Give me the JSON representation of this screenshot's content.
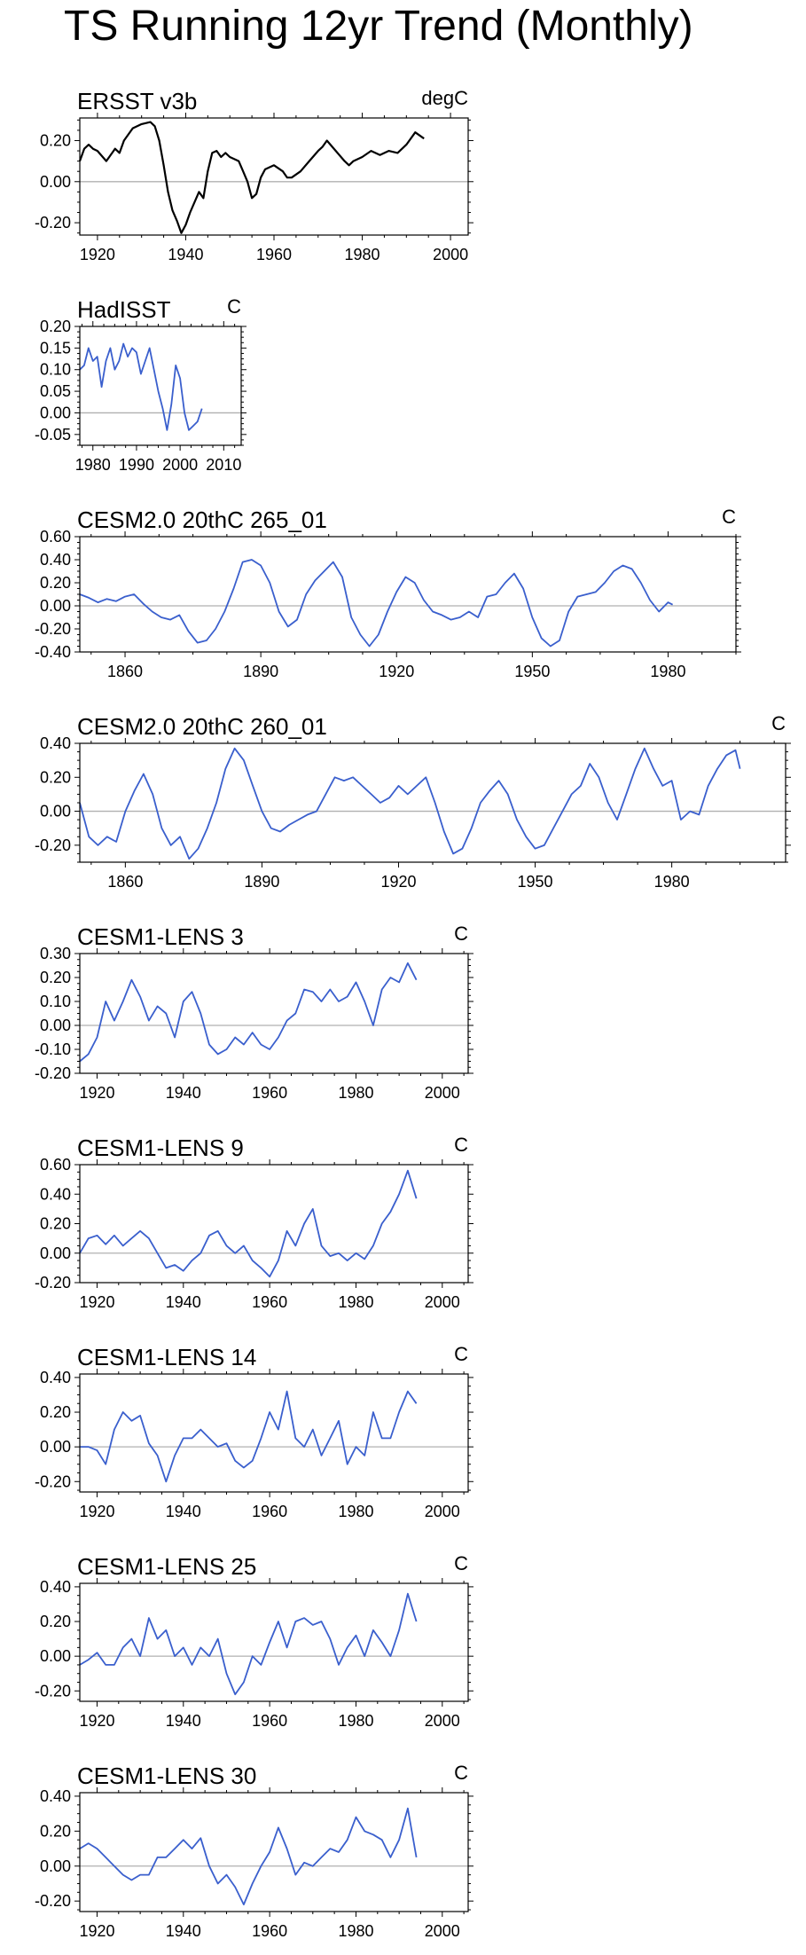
{
  "page_title": "TS Running 12yr Trend (Monthly)",
  "colors": {
    "obs_line": "#000000",
    "model_line": "#3a5fcd",
    "zero_line": "#b0b0b0",
    "axis": "#000000"
  },
  "chart_data": [
    {
      "type": "line",
      "id": "ersst",
      "title": "ERSST v3b",
      "units": "degC",
      "xlim": [
        1916,
        2004
      ],
      "ylim": [
        -0.26,
        0.31
      ],
      "xticks": [
        1920,
        1940,
        1960,
        1980,
        2000
      ],
      "xtick_labels": [
        "1920",
        "1940",
        "1960",
        "1980",
        "2000"
      ],
      "yticks": [
        -0.2,
        0,
        0.2
      ],
      "ytick_labels": [
        "-0.20",
        "0.00",
        "0.20"
      ],
      "x": [
        1916,
        1917,
        1918,
        1919,
        1920,
        1922,
        1924,
        1925,
        1926,
        1928,
        1930,
        1932,
        1933,
        1934,
        1935,
        1936,
        1937,
        1938,
        1939,
        1940,
        1941,
        1942,
        1943,
        1944,
        1945,
        1946,
        1947,
        1948,
        1949,
        1950,
        1952,
        1953,
        1954,
        1955,
        1956,
        1957,
        1958,
        1960,
        1962,
        1963,
        1964,
        1966,
        1968,
        1970,
        1971,
        1972,
        1974,
        1976,
        1977,
        1978,
        1980,
        1982,
        1984,
        1986,
        1988,
        1990,
        1992,
        1994
      ],
      "values": [
        0.1,
        0.16,
        0.18,
        0.16,
        0.15,
        0.1,
        0.16,
        0.14,
        0.2,
        0.26,
        0.28,
        0.29,
        0.27,
        0.2,
        0.08,
        -0.05,
        -0.14,
        -0.19,
        -0.25,
        -0.21,
        -0.15,
        -0.1,
        -0.05,
        -0.08,
        0.05,
        0.14,
        0.15,
        0.12,
        0.14,
        0.12,
        0.1,
        0.05,
        0.0,
        -0.08,
        -0.06,
        0.02,
        0.06,
        0.08,
        0.05,
        0.02,
        0.02,
        0.05,
        0.1,
        0.15,
        0.17,
        0.2,
        0.15,
        0.1,
        0.08,
        0.1,
        0.12,
        0.15,
        0.13,
        0.15,
        0.14,
        0.18,
        0.24,
        0.21
      ]
    },
    {
      "type": "line",
      "id": "hadisst",
      "title": "HadISST",
      "units": "C",
      "xlim": [
        1977,
        2014
      ],
      "ylim": [
        -0.075,
        0.2
      ],
      "xticks": [
        1980,
        1990,
        2000,
        2010
      ],
      "xtick_labels": [
        "1980",
        "1990",
        "2000",
        "2010"
      ],
      "yticks": [
        -0.05,
        0,
        0.05,
        0.1,
        0.15,
        0.2
      ],
      "ytick_labels": [
        "-0.05",
        "0.00",
        "0.05",
        "0.10",
        "0.15",
        "0.20"
      ],
      "x": [
        1977,
        1978,
        1979,
        1980,
        1981,
        1982,
        1983,
        1984,
        1985,
        1986,
        1987,
        1988,
        1989,
        1990,
        1991,
        1992,
        1993,
        1994,
        1995,
        1996,
        1997,
        1998,
        1999,
        2000,
        2001,
        2002,
        2003,
        2004,
        2005
      ],
      "values": [
        0.1,
        0.11,
        0.15,
        0.12,
        0.13,
        0.06,
        0.12,
        0.15,
        0.1,
        0.12,
        0.16,
        0.13,
        0.15,
        0.14,
        0.09,
        0.12,
        0.15,
        0.1,
        0.05,
        0.01,
        -0.04,
        0.02,
        0.11,
        0.08,
        0.0,
        -0.04,
        -0.03,
        -0.02,
        0.01
      ]
    },
    {
      "type": "line",
      "id": "cesm2-265",
      "title": "CESM2.0 20thC 265_01",
      "units": "C",
      "xlim": [
        1850,
        1995
      ],
      "ylim": [
        -0.4,
        0.6
      ],
      "xticks": [
        1860,
        1890,
        1920,
        1950,
        1980
      ],
      "xtick_labels": [
        "1860",
        "1890",
        "1920",
        "1950",
        "1980"
      ],
      "yticks": [
        -0.4,
        -0.2,
        0,
        0.2,
        0.4,
        0.6
      ],
      "ytick_labels": [
        "-0.40",
        "-0.20",
        "0.00",
        "0.20",
        "0.40",
        "0.60"
      ],
      "x": [
        1850,
        1852,
        1854,
        1856,
        1858,
        1860,
        1862,
        1864,
        1866,
        1868,
        1870,
        1872,
        1874,
        1876,
        1878,
        1880,
        1882,
        1884,
        1886,
        1888,
        1890,
        1892,
        1894,
        1896,
        1898,
        1900,
        1902,
        1904,
        1906,
        1908,
        1910,
        1912,
        1914,
        1916,
        1918,
        1920,
        1922,
        1924,
        1926,
        1928,
        1930,
        1932,
        1934,
        1936,
        1938,
        1940,
        1942,
        1944,
        1946,
        1948,
        1950,
        1952,
        1954,
        1956,
        1958,
        1960,
        1962,
        1964,
        1966,
        1968,
        1970,
        1972,
        1974,
        1976,
        1978,
        1980,
        1981
      ],
      "values": [
        0.1,
        0.07,
        0.03,
        0.06,
        0.04,
        0.08,
        0.1,
        0.02,
        -0.05,
        -0.1,
        -0.12,
        -0.08,
        -0.22,
        -0.32,
        -0.3,
        -0.2,
        -0.05,
        0.15,
        0.38,
        0.4,
        0.35,
        0.2,
        -0.05,
        -0.18,
        -0.12,
        0.1,
        0.22,
        0.3,
        0.38,
        0.25,
        -0.1,
        -0.25,
        -0.35,
        -0.25,
        -0.05,
        0.12,
        0.25,
        0.2,
        0.05,
        -0.05,
        -0.08,
        -0.12,
        -0.1,
        -0.05,
        -0.1,
        0.08,
        0.1,
        0.2,
        0.28,
        0.15,
        -0.1,
        -0.28,
        -0.35,
        -0.3,
        -0.05,
        0.08,
        0.1,
        0.12,
        0.2,
        0.3,
        0.35,
        0.32,
        0.2,
        0.05,
        -0.05,
        0.03,
        0.01
      ]
    },
    {
      "type": "line",
      "id": "cesm2-260",
      "title": "CESM2.0 20thC 260_01",
      "units": "C",
      "xlim": [
        1850,
        2005
      ],
      "ylim": [
        -0.3,
        0.4
      ],
      "xticks": [
        1860,
        1890,
        1920,
        1950,
        1980
      ],
      "xtick_labels": [
        "1860",
        "1890",
        "1920",
        "1950",
        "1980"
      ],
      "yticks": [
        -0.2,
        0,
        0.2,
        0.4
      ],
      "ytick_labels": [
        "-0.20",
        "0.00",
        "0.20",
        "0.40"
      ],
      "x": [
        1850,
        1852,
        1854,
        1856,
        1858,
        1860,
        1862,
        1864,
        1866,
        1868,
        1870,
        1872,
        1874,
        1876,
        1878,
        1880,
        1882,
        1884,
        1886,
        1888,
        1890,
        1892,
        1894,
        1896,
        1898,
        1900,
        1902,
        1904,
        1906,
        1908,
        1910,
        1912,
        1914,
        1916,
        1918,
        1920,
        1922,
        1924,
        1926,
        1928,
        1930,
        1932,
        1934,
        1936,
        1938,
        1940,
        1942,
        1944,
        1946,
        1948,
        1950,
        1952,
        1954,
        1956,
        1958,
        1960,
        1962,
        1964,
        1966,
        1968,
        1970,
        1972,
        1974,
        1976,
        1978,
        1980,
        1982,
        1984,
        1986,
        1988,
        1990,
        1992,
        1994,
        1995
      ],
      "values": [
        0.05,
        -0.15,
        -0.2,
        -0.15,
        -0.18,
        0.0,
        0.12,
        0.22,
        0.1,
        -0.1,
        -0.2,
        -0.15,
        -0.28,
        -0.22,
        -0.1,
        0.05,
        0.25,
        0.37,
        0.3,
        0.15,
        0.0,
        -0.1,
        -0.12,
        -0.08,
        -0.05,
        -0.02,
        0.0,
        0.1,
        0.2,
        0.18,
        0.2,
        0.15,
        0.1,
        0.05,
        0.08,
        0.15,
        0.1,
        0.15,
        0.2,
        0.05,
        -0.12,
        -0.25,
        -0.22,
        -0.1,
        0.05,
        0.12,
        0.18,
        0.1,
        -0.05,
        -0.15,
        -0.22,
        -0.2,
        -0.1,
        0.0,
        0.1,
        0.15,
        0.28,
        0.2,
        0.05,
        -0.05,
        0.1,
        0.25,
        0.37,
        0.25,
        0.15,
        0.18,
        -0.05,
        0.0,
        -0.02,
        0.15,
        0.25,
        0.33,
        0.36,
        0.25
      ]
    },
    {
      "type": "line",
      "id": "lens-3",
      "title": "CESM1-LENS 3",
      "units": "C",
      "xlim": [
        1916,
        2006
      ],
      "ylim": [
        -0.2,
        0.3
      ],
      "xticks": [
        1920,
        1940,
        1960,
        1980,
        2000
      ],
      "xtick_labels": [
        "1920",
        "1940",
        "1960",
        "1980",
        "2000"
      ],
      "yticks": [
        -0.2,
        -0.1,
        0,
        0.1,
        0.2,
        0.3
      ],
      "ytick_labels": [
        "-0.20",
        "-0.10",
        "0.00",
        "0.10",
        "0.20",
        "0.30"
      ],
      "x": [
        1916,
        1918,
        1920,
        1922,
        1924,
        1926,
        1928,
        1930,
        1932,
        1934,
        1936,
        1938,
        1940,
        1942,
        1944,
        1946,
        1948,
        1950,
        1952,
        1954,
        1956,
        1958,
        1960,
        1962,
        1964,
        1966,
        1968,
        1970,
        1972,
        1974,
        1976,
        1978,
        1980,
        1982,
        1984,
        1986,
        1988,
        1990,
        1992,
        1994
      ],
      "values": [
        -0.15,
        -0.12,
        -0.05,
        0.1,
        0.02,
        0.1,
        0.19,
        0.12,
        0.02,
        0.08,
        0.05,
        -0.05,
        0.1,
        0.14,
        0.05,
        -0.08,
        -0.12,
        -0.1,
        -0.05,
        -0.08,
        -0.03,
        -0.08,
        -0.1,
        -0.05,
        0.02,
        0.05,
        0.15,
        0.14,
        0.1,
        0.15,
        0.1,
        0.12,
        0.18,
        0.1,
        0.0,
        0.15,
        0.2,
        0.18,
        0.26,
        0.19
      ]
    },
    {
      "type": "line",
      "id": "lens-9",
      "title": "CESM1-LENS 9",
      "units": "C",
      "xlim": [
        1916,
        2006
      ],
      "ylim": [
        -0.2,
        0.6
      ],
      "xticks": [
        1920,
        1940,
        1960,
        1980,
        2000
      ],
      "xtick_labels": [
        "1920",
        "1940",
        "1960",
        "1980",
        "2000"
      ],
      "yticks": [
        -0.2,
        0,
        0.2,
        0.4,
        0.6
      ],
      "ytick_labels": [
        "-0.20",
        "0.00",
        "0.20",
        "0.40",
        "0.60"
      ],
      "x": [
        1916,
        1918,
        1920,
        1922,
        1924,
        1926,
        1928,
        1930,
        1932,
        1934,
        1936,
        1938,
        1940,
        1942,
        1944,
        1946,
        1948,
        1950,
        1952,
        1954,
        1956,
        1958,
        1960,
        1962,
        1964,
        1966,
        1968,
        1970,
        1972,
        1974,
        1976,
        1978,
        1980,
        1982,
        1984,
        1986,
        1988,
        1990,
        1992,
        1994
      ],
      "values": [
        0.0,
        0.1,
        0.12,
        0.06,
        0.12,
        0.05,
        0.1,
        0.15,
        0.1,
        0.0,
        -0.1,
        -0.08,
        -0.12,
        -0.05,
        0.0,
        0.12,
        0.15,
        0.05,
        0.0,
        0.05,
        -0.05,
        -0.1,
        -0.16,
        -0.05,
        0.15,
        0.05,
        0.2,
        0.3,
        0.05,
        -0.02,
        0.0,
        -0.05,
        0.0,
        -0.04,
        0.05,
        0.2,
        0.28,
        0.4,
        0.56,
        0.37
      ]
    },
    {
      "type": "line",
      "id": "lens-14",
      "title": "CESM1-LENS 14",
      "units": "C",
      "xlim": [
        1916,
        2006
      ],
      "ylim": [
        -0.26,
        0.42
      ],
      "xticks": [
        1920,
        1940,
        1960,
        1980,
        2000
      ],
      "xtick_labels": [
        "1920",
        "1940",
        "1960",
        "1980",
        "2000"
      ],
      "yticks": [
        -0.2,
        0,
        0.2,
        0.4
      ],
      "ytick_labels": [
        "-0.20",
        "0.00",
        "0.20",
        "0.40"
      ],
      "x": [
        1916,
        1918,
        1920,
        1922,
        1924,
        1926,
        1928,
        1930,
        1932,
        1934,
        1936,
        1938,
        1940,
        1942,
        1944,
        1946,
        1948,
        1950,
        1952,
        1954,
        1956,
        1958,
        1960,
        1962,
        1964,
        1966,
        1968,
        1970,
        1972,
        1974,
        1976,
        1978,
        1980,
        1982,
        1984,
        1986,
        1988,
        1990,
        1992,
        1994
      ],
      "values": [
        0.0,
        0.0,
        -0.02,
        -0.1,
        0.1,
        0.2,
        0.15,
        0.18,
        0.02,
        -0.05,
        -0.2,
        -0.05,
        0.05,
        0.05,
        0.1,
        0.05,
        0.0,
        0.02,
        -0.08,
        -0.12,
        -0.08,
        0.05,
        0.2,
        0.1,
        0.32,
        0.05,
        0.0,
        0.1,
        -0.05,
        0.05,
        0.15,
        -0.1,
        0.0,
        -0.05,
        0.2,
        0.05,
        0.05,
        0.2,
        0.32,
        0.25
      ]
    },
    {
      "type": "line",
      "id": "lens-25",
      "title": "CESM1-LENS 25",
      "units": "C",
      "xlim": [
        1916,
        2006
      ],
      "ylim": [
        -0.26,
        0.42
      ],
      "xticks": [
        1920,
        1940,
        1960,
        1980,
        2000
      ],
      "xtick_labels": [
        "1920",
        "1940",
        "1960",
        "1980",
        "2000"
      ],
      "yticks": [
        -0.2,
        0,
        0.2,
        0.4
      ],
      "ytick_labels": [
        "-0.20",
        "0.00",
        "0.20",
        "0.40"
      ],
      "x": [
        1916,
        1918,
        1920,
        1922,
        1924,
        1926,
        1928,
        1930,
        1932,
        1934,
        1936,
        1938,
        1940,
        1942,
        1944,
        1946,
        1948,
        1950,
        1952,
        1954,
        1956,
        1958,
        1960,
        1962,
        1964,
        1966,
        1968,
        1970,
        1972,
        1974,
        1976,
        1978,
        1980,
        1982,
        1984,
        1986,
        1988,
        1990,
        1992,
        1994
      ],
      "values": [
        -0.05,
        -0.02,
        0.02,
        -0.05,
        -0.05,
        0.05,
        0.1,
        0.0,
        0.22,
        0.1,
        0.15,
        0.0,
        0.05,
        -0.05,
        0.05,
        0.0,
        0.1,
        -0.1,
        -0.22,
        -0.15,
        0.0,
        -0.05,
        0.08,
        0.2,
        0.05,
        0.2,
        0.22,
        0.18,
        0.2,
        0.1,
        -0.05,
        0.05,
        0.12,
        0.0,
        0.15,
        0.08,
        0.0,
        0.15,
        0.36,
        0.2
      ]
    },
    {
      "type": "line",
      "id": "lens-30",
      "title": "CESM1-LENS 30",
      "units": "C",
      "xlim": [
        1916,
        2006
      ],
      "ylim": [
        -0.26,
        0.42
      ],
      "xticks": [
        1920,
        1940,
        1960,
        1980,
        2000
      ],
      "xtick_labels": [
        "1920",
        "1940",
        "1960",
        "1980",
        "2000"
      ],
      "yticks": [
        -0.2,
        0,
        0.2,
        0.4
      ],
      "ytick_labels": [
        "-0.20",
        "0.00",
        "0.20",
        "0.40"
      ],
      "x": [
        1916,
        1918,
        1920,
        1922,
        1924,
        1926,
        1928,
        1930,
        1932,
        1934,
        1936,
        1938,
        1940,
        1942,
        1944,
        1946,
        1948,
        1950,
        1952,
        1954,
        1956,
        1958,
        1960,
        1962,
        1964,
        1966,
        1968,
        1970,
        1972,
        1974,
        1976,
        1978,
        1980,
        1982,
        1984,
        1986,
        1988,
        1990,
        1992,
        1994
      ],
      "values": [
        0.1,
        0.13,
        0.1,
        0.05,
        0.0,
        -0.05,
        -0.08,
        -0.05,
        -0.05,
        0.05,
        0.05,
        0.1,
        0.15,
        0.1,
        0.16,
        0.0,
        -0.1,
        -0.05,
        -0.12,
        -0.22,
        -0.1,
        0.0,
        0.08,
        0.22,
        0.1,
        -0.05,
        0.02,
        0.0,
        0.05,
        0.1,
        0.08,
        0.15,
        0.28,
        0.2,
        0.18,
        0.15,
        0.05,
        0.15,
        0.33,
        0.05
      ]
    }
  ]
}
